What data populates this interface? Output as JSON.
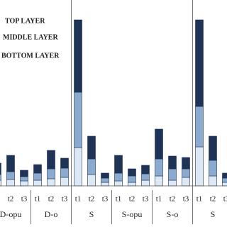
{
  "chart_data": {
    "type": "stacked_bar",
    "categories": [
      null,
      "t2",
      "t3",
      "t1",
      "t2",
      "t3",
      "t1",
      "t2",
      "t3",
      "t1",
      "t2",
      "t3",
      "t1",
      "t2",
      "t3",
      "t1",
      "t2",
      "t3"
    ],
    "groups": [
      "D-opu",
      "D-o",
      "S",
      "S-opu",
      "S-o",
      "S"
    ],
    "series": [
      {
        "name": "TOP LAYER",
        "color": "#1f3356",
        "values": [
          16,
          23,
          9,
          12,
          26,
          14,
          102,
          32,
          7,
          25,
          10,
          12,
          42,
          18,
          16,
          122,
          34,
          7
        ]
      },
      {
        "name": "MIDDLE LAYER",
        "color": "#8aaad0",
        "values": [
          8,
          11,
          6,
          10,
          14,
          13,
          78,
          22,
          6,
          11,
          9,
          9,
          24,
          16,
          12,
          57,
          22,
          6
        ]
      },
      {
        "name": "BOTTOM LAYER",
        "color": "#dce8f4",
        "values": [
          8,
          9,
          7,
          8,
          10,
          12,
          54,
          16,
          5,
          7,
          5,
          8,
          14,
          8,
          12,
          55,
          14,
          5
        ]
      }
    ],
    "ylim": [
      0,
      240
    ]
  }
}
